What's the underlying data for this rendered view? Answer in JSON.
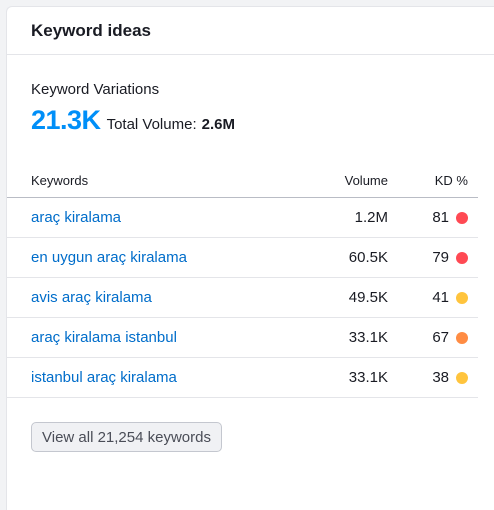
{
  "widget": {
    "title": "Keyword ideas",
    "variations_label": "Keyword Variations",
    "variations_count": "21.3K",
    "total_volume_label": "Total Volume:",
    "total_volume_value": "2.6M"
  },
  "table": {
    "headers": {
      "keyword": "Keywords",
      "volume": "Volume",
      "kd": "KD %"
    },
    "rows": [
      {
        "keyword": "araç kiralama",
        "volume": "1.2M",
        "kd": "81",
        "kd_color": "#ff4953"
      },
      {
        "keyword": "en uygun araç kiralama",
        "volume": "60.5K",
        "kd": "79",
        "kd_color": "#ff4953"
      },
      {
        "keyword": "avis araç kiralama",
        "volume": "49.5K",
        "kd": "41",
        "kd_color": "#ffc43d"
      },
      {
        "keyword": "araç kiralama istanbul",
        "volume": "33.1K",
        "kd": "67",
        "kd_color": "#ff8c43"
      },
      {
        "keyword": "istanbul araç kiralama",
        "volume": "33.1K",
        "kd": "38",
        "kd_color": "#ffc43d"
      }
    ]
  },
  "view_all_button": {
    "label": "View all 21,254 keywords"
  }
}
